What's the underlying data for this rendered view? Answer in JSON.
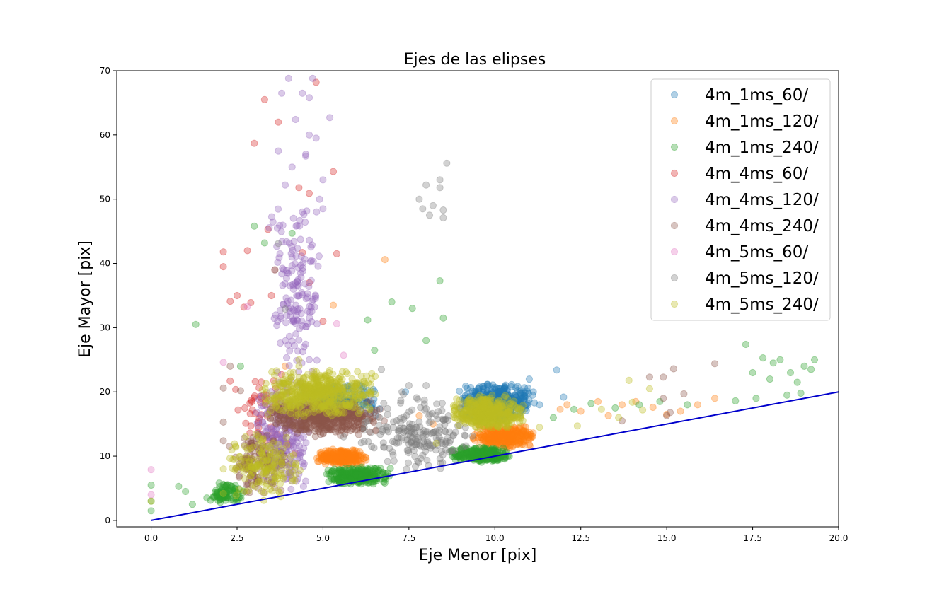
{
  "chart_data": {
    "type": "scatter",
    "title": "Ejes de las elipses",
    "xlabel": "Eje Menor [pix]",
    "ylabel": "Eje Mayor [pix]",
    "xlim": [
      -1.0,
      20.0
    ],
    "ylim": [
      -1.0,
      70.0
    ],
    "xticks": [
      0.0,
      2.5,
      5.0,
      7.5,
      10.0,
      12.5,
      15.0,
      17.5,
      20.0
    ],
    "xtick_labels": [
      "0.0",
      "2.5",
      "5.0",
      "7.5",
      "10.0",
      "12.5",
      "15.0",
      "17.5",
      "20.0"
    ],
    "yticks": [
      0,
      10,
      20,
      30,
      40,
      50,
      60,
      70
    ],
    "ytick_labels": [
      "0",
      "10",
      "20",
      "30",
      "40",
      "50",
      "60",
      "70"
    ],
    "grid": false,
    "legend_position": "top-right",
    "marker_alpha": 0.35,
    "reference_line": {
      "type": "line",
      "color": "#0000cc",
      "x": [
        0,
        20
      ],
      "y": [
        0,
        20
      ]
    },
    "series": [
      {
        "name": "4m_1ms_60/",
        "color": "#1f77b4",
        "clusters": [
          {
            "x": [
              8.9,
              11.2
            ],
            "y": [
              15.5,
              21.5
            ],
            "n": 420
          },
          {
            "x": [
              4.3,
              6.8
            ],
            "y": [
              16.0,
              21.5
            ],
            "n": 140
          }
        ],
        "points": [
          [
            11.8,
            23.4
          ],
          [
            12.0,
            19.2
          ],
          [
            11.3,
            18.0
          ],
          [
            11.0,
            22.0
          ],
          [
            6.2,
            20.0
          ],
          [
            7.4,
            20.0
          ]
        ]
      },
      {
        "name": "4m_1ms_120/",
        "color": "#ff7f0e",
        "clusters": [
          {
            "x": [
              9.3,
              11.2
            ],
            "y": [
              11.0,
              15.0
            ],
            "n": 320
          },
          {
            "x": [
              4.8,
              6.3
            ],
            "y": [
              8.5,
              11.2
            ],
            "n": 260
          }
        ],
        "points": [
          [
            6.8,
            40.6
          ],
          [
            5.3,
            33.5
          ],
          [
            11.9,
            17.3
          ],
          [
            12.1,
            18.0
          ],
          [
            12.5,
            17.0
          ],
          [
            13.0,
            18.5
          ],
          [
            13.3,
            16.3
          ],
          [
            13.7,
            18.0
          ],
          [
            14.1,
            18.5
          ],
          [
            14.6,
            17.6
          ],
          [
            15.0,
            16.5
          ],
          [
            15.4,
            17.0
          ],
          [
            15.9,
            18.0
          ],
          [
            16.4,
            19.0
          ],
          [
            7.8,
            16.3
          ],
          [
            8.2,
            15.0
          ],
          [
            4.0,
            20.0
          ],
          [
            3.9,
            24.0
          ]
        ]
      },
      {
        "name": "4m_1ms_240/",
        "color": "#2ca02c",
        "clusters": [
          {
            "x": [
              8.7,
              10.5
            ],
            "y": [
              9.0,
              11.5
            ],
            "n": 300
          },
          {
            "x": [
              5.0,
              7.0
            ],
            "y": [
              5.5,
              8.5
            ],
            "n": 280
          },
          {
            "x": [
              1.6,
              2.8
            ],
            "y": [
              2.5,
              6.0
            ],
            "n": 90
          }
        ],
        "points": [
          [
            0.0,
            5.5
          ],
          [
            0.0,
            3.0
          ],
          [
            0.0,
            1.5
          ],
          [
            0.8,
            5.3
          ],
          [
            1.0,
            4.5
          ],
          [
            1.2,
            2.5
          ],
          [
            1.3,
            30.5
          ],
          [
            3.0,
            45.8
          ],
          [
            3.3,
            43.2
          ],
          [
            2.6,
            24.0
          ],
          [
            6.3,
            31.2
          ],
          [
            6.5,
            26.5
          ],
          [
            7.0,
            34.0
          ],
          [
            7.6,
            33.0
          ],
          [
            8.4,
            37.3
          ],
          [
            8.5,
            31.5
          ],
          [
            8.0,
            28.0
          ],
          [
            11.7,
            16.0
          ],
          [
            12.3,
            17.3
          ],
          [
            12.8,
            18.2
          ],
          [
            13.5,
            17.5
          ],
          [
            14.2,
            18.0
          ],
          [
            14.8,
            18.5
          ],
          [
            15.6,
            18.0
          ],
          [
            17.0,
            18.6
          ],
          [
            17.3,
            27.4
          ],
          [
            17.5,
            23.0
          ],
          [
            17.8,
            25.3
          ],
          [
            18.0,
            22.0
          ],
          [
            18.1,
            24.5
          ],
          [
            18.3,
            25.0
          ],
          [
            18.5,
            19.5
          ],
          [
            18.6,
            23.0
          ],
          [
            18.8,
            21.5
          ],
          [
            19.0,
            24.0
          ],
          [
            19.2,
            23.5
          ],
          [
            19.3,
            25.0
          ],
          [
            18.9,
            19.8
          ],
          [
            17.6,
            19.0
          ],
          [
            4.1,
            44.7
          ]
        ]
      },
      {
        "name": "4m_4ms_60/",
        "color": "#d62728",
        "clusters": [
          {
            "x": [
              2.0,
              4.5
            ],
            "y": [
              8.0,
              25.0
            ],
            "n": 60
          }
        ],
        "points": [
          [
            2.1,
            41.8
          ],
          [
            2.1,
            39.5
          ],
          [
            2.8,
            42.0
          ],
          [
            3.0,
            58.7
          ],
          [
            3.3,
            65.5
          ],
          [
            3.7,
            62.0
          ],
          [
            3.4,
            45.3
          ],
          [
            4.3,
            51.8
          ],
          [
            4.4,
            41.7
          ],
          [
            4.8,
            68.2
          ],
          [
            5.3,
            54.3
          ],
          [
            5.4,
            41.5
          ],
          [
            4.6,
            50.9
          ],
          [
            2.5,
            35.0
          ],
          [
            2.7,
            33.2
          ],
          [
            3.5,
            35.0
          ],
          [
            4.6,
            37.0
          ],
          [
            3.6,
            39.0
          ],
          [
            2.9,
            33.9
          ],
          [
            2.3,
            34.1
          ],
          [
            5.0,
            31.0
          ]
        ]
      },
      {
        "name": "4m_4ms_120/",
        "color": "#9467bd",
        "clusters": [
          {
            "x": [
              3.4,
              5.0
            ],
            "y": [
              20.0,
              50.0
            ],
            "n": 160
          },
          {
            "x": [
              3.0,
              4.6
            ],
            "y": [
              4.0,
              22.0
            ],
            "n": 220
          }
        ],
        "points": [
          [
            4.0,
            68.8
          ],
          [
            4.7,
            68.8
          ],
          [
            3.8,
            66.5
          ],
          [
            4.4,
            66.5
          ],
          [
            4.6,
            65.8
          ],
          [
            5.2,
            62.7
          ],
          [
            4.2,
            62.4
          ],
          [
            3.7,
            57.5
          ],
          [
            4.6,
            60.0
          ],
          [
            4.8,
            59.5
          ],
          [
            4.5,
            57.0
          ],
          [
            4.1,
            55.0
          ],
          [
            4.5,
            56.7
          ],
          [
            5.0,
            53.0
          ],
          [
            3.9,
            52.2
          ],
          [
            4.9,
            50.0
          ],
          [
            5.0,
            48.5
          ],
          [
            4.4,
            48.0
          ]
        ]
      },
      {
        "name": "4m_4ms_240/",
        "color": "#8c564b",
        "clusters": [
          {
            "x": [
              3.3,
              6.8
            ],
            "y": [
              13.0,
              19.0
            ],
            "n": 480
          },
          {
            "x": [
              2.2,
              4.0
            ],
            "y": [
              4.0,
              14.0
            ],
            "n": 120
          }
        ],
        "points": [
          [
            14.5,
            22.3
          ],
          [
            14.9,
            22.3
          ],
          [
            15.2,
            23.6
          ],
          [
            16.4,
            24.4
          ],
          [
            15.5,
            19.7
          ],
          [
            14.9,
            19.0
          ],
          [
            15.0,
            16.3
          ],
          [
            15.1,
            16.8
          ],
          [
            13.7,
            15.5
          ],
          [
            2.1,
            20.6
          ],
          [
            2.1,
            15.3
          ],
          [
            2.1,
            12.4
          ],
          [
            2.6,
            20.2
          ],
          [
            2.3,
            24.0
          ]
        ]
      },
      {
        "name": "4m_5ms_60/",
        "color": "#e377c2",
        "clusters": [],
        "points": [
          [
            0.0,
            7.9
          ],
          [
            0.0,
            4.0
          ],
          [
            2.8,
            33.3
          ],
          [
            5.6,
            25.7
          ],
          [
            5.4,
            30.6
          ],
          [
            2.1,
            24.6
          ]
        ]
      },
      {
        "name": "4m_5ms_120/",
        "color": "#7f7f7f",
        "clusters": [
          {
            "x": [
              6.0,
              9.5
            ],
            "y": [
              7.5,
              20.0
            ],
            "n": 200
          }
        ],
        "points": [
          [
            8.6,
            55.6
          ],
          [
            8.4,
            53.0
          ],
          [
            8.4,
            51.8
          ],
          [
            8.0,
            52.2
          ],
          [
            7.8,
            50.0
          ],
          [
            8.2,
            49.0
          ],
          [
            7.9,
            48.5
          ],
          [
            8.1,
            47.5
          ],
          [
            8.5,
            48.3
          ],
          [
            8.5,
            47.1
          ],
          [
            6.7,
            23.5
          ],
          [
            7.3,
            20.0
          ],
          [
            7.5,
            21.0
          ],
          [
            8.0,
            21.0
          ],
          [
            6.2,
            14.5
          ],
          [
            5.6,
            13.0
          ],
          [
            3.7,
            43.1
          ],
          [
            3.6,
            39.0
          ],
          [
            3.9,
            32.9
          ],
          [
            6.4,
            19.5
          ]
        ]
      },
      {
        "name": "4m_5ms_240/",
        "color": "#bcbd22",
        "clusters": [
          {
            "x": [
              3.2,
              6.6
            ],
            "y": [
              16.0,
              23.5
            ],
            "n": 520
          },
          {
            "x": [
              8.7,
              10.9
            ],
            "y": [
              14.0,
              19.5
            ],
            "n": 430
          },
          {
            "x": [
              2.2,
              4.5
            ],
            "y": [
              3.0,
              14.0
            ],
            "n": 160
          }
        ],
        "points": [
          [
            13.1,
            17.3
          ],
          [
            13.9,
            21.8
          ],
          [
            14.0,
            18.4
          ],
          [
            14.5,
            20.5
          ],
          [
            12.4,
            14.7
          ],
          [
            11.3,
            14.5
          ],
          [
            14.3,
            17.2
          ],
          [
            13.6,
            16.0
          ],
          [
            4.3,
            25.0
          ],
          [
            4.3,
            24.0
          ],
          [
            8.3,
            12.0
          ],
          [
            2.1,
            8.0
          ],
          [
            2.1,
            4.2
          ],
          [
            0.0,
            3.0
          ]
        ]
      }
    ]
  }
}
